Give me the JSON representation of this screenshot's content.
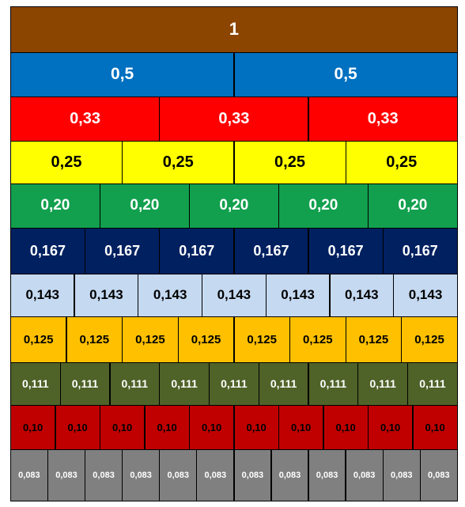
{
  "rows": [
    {
      "denominator": 1,
      "color": "#8B4500",
      "text_color": "#FFFFFF",
      "labels": [
        "1"
      ]
    },
    {
      "denominator": 2,
      "color": "#0070C0",
      "text_color": "#FFFFFF",
      "labels": [
        "0,5",
        "0,5"
      ]
    },
    {
      "denominator": 3,
      "color": "#FF0000",
      "text_color": "#FFFFFF",
      "labels": [
        "0,33",
        "0,33",
        "0,33"
      ]
    },
    {
      "denominator": 4,
      "color": "#FFFF00",
      "text_color": "#000000",
      "labels": [
        "0,25",
        "0,25",
        "0,25",
        "0,25"
      ]
    },
    {
      "denominator": 5,
      "color": "#12A04E",
      "text_color": "#FFFFFF",
      "labels": [
        "0,20",
        "0,20",
        "0,20",
        "0,20",
        "0,20"
      ]
    },
    {
      "denominator": 6,
      "color": "#002060",
      "text_color": "#FFFFFF",
      "labels": [
        "0,167",
        "0,167",
        "0,167",
        "0,167",
        "0,167",
        "0,167"
      ]
    },
    {
      "denominator": 7,
      "color": "#C5D9F1",
      "text_color": "#000000",
      "labels": [
        "0,143",
        "0,143",
        "0,143",
        "0,143",
        "0,143",
        "0,143",
        "0,143"
      ]
    },
    {
      "denominator": 8,
      "color": "#FFC000",
      "text_color": "#000000",
      "labels": [
        "0,125",
        "0,125",
        "0,125",
        "0,125",
        "0,125",
        "0,125",
        "0,125",
        "0,125"
      ]
    },
    {
      "denominator": 9,
      "color": "#4F6228",
      "text_color": "#FFFFFF",
      "labels": [
        "0,111",
        "0,111",
        "0,111",
        "0,111",
        "0,111",
        "0,111",
        "0,111",
        "0,111",
        "0,111"
      ]
    },
    {
      "denominator": 10,
      "color": "#C00000",
      "text_color": "#000000",
      "labels": [
        "0,10",
        "0,10",
        "0,10",
        "0,10",
        "0,10",
        "0,10",
        "0,10",
        "0,10",
        "0,10",
        "0,10"
      ]
    },
    {
      "denominator": 12,
      "color": "#808080",
      "text_color": "#FFFFFF",
      "labels": [
        "0,083",
        "0,083",
        "0,083",
        "0,083",
        "0,083",
        "0,083",
        "0,083",
        "0,083",
        "0,083",
        "0,083",
        "0,083",
        "0,083"
      ]
    }
  ]
}
